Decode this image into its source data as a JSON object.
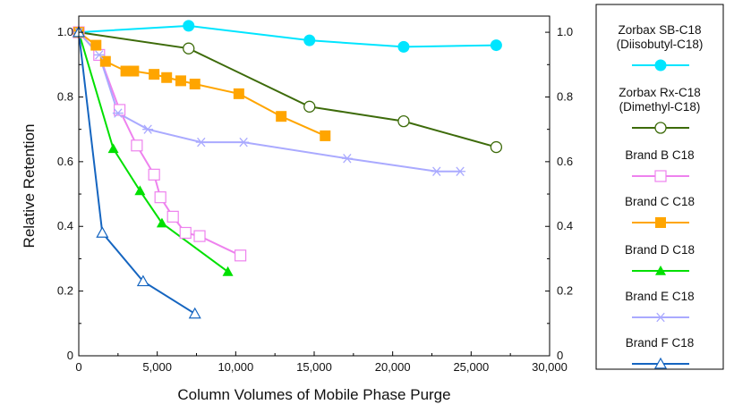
{
  "chart_data": {
    "type": "line",
    "title": "",
    "xlabel": "Column Volumes of Mobile Phase Purge",
    "ylabel": "Relative Retention",
    "xlim": [
      0,
      30000
    ],
    "ylim": [
      0,
      1.05
    ],
    "x_ticks": [
      0,
      5000,
      10000,
      15000,
      20000,
      25000,
      30000
    ],
    "x_tick_labels": [
      "0",
      "5,000",
      "10,000",
      "15,000",
      "20,000",
      "25,000",
      "30,000"
    ],
    "y_ticks": [
      0,
      0.2,
      0.4,
      0.6,
      0.8,
      1.0
    ],
    "y_tick_labels_left": [
      "0",
      "0.2",
      "0.4",
      "0.6",
      "0.8",
      "1.0"
    ],
    "y_tick_labels_right": [
      "0",
      "0.2",
      "0.4",
      "0.6",
      "0.8",
      "1.0"
    ],
    "grid": false,
    "legend_position": "right",
    "series": [
      {
        "name": "Zorbax SB-C18 (Diisobutyl-C18)",
        "legend_lines": [
          "Zorbax SB-C18",
          "(Diisobutyl-C18)"
        ],
        "color": "#00e5ff",
        "marker": "circle-filled",
        "points": [
          [
            0,
            1.0
          ],
          [
            7000,
            1.02
          ],
          [
            14700,
            0.975
          ],
          [
            20700,
            0.955
          ],
          [
            26600,
            0.96
          ]
        ]
      },
      {
        "name": "Zorbax Rx-C18 (Dimethyl-C18)",
        "legend_lines": [
          "Zorbax Rx-C18",
          "(Dimethyl-C18)"
        ],
        "color": "#3d6b0a",
        "marker": "circle-open",
        "points": [
          [
            0,
            1.0
          ],
          [
            7000,
            0.95
          ],
          [
            14700,
            0.77
          ],
          [
            20700,
            0.725
          ],
          [
            26600,
            0.645
          ]
        ]
      },
      {
        "name": "Brand B C18",
        "legend_lines": [
          "Brand B C18"
        ],
        "color": "#ee82ee",
        "marker": "square-open",
        "points": [
          [
            0,
            1.0
          ],
          [
            1300,
            0.93
          ],
          [
            2600,
            0.76
          ],
          [
            3700,
            0.65
          ],
          [
            4800,
            0.56
          ],
          [
            5200,
            0.49
          ],
          [
            6000,
            0.43
          ],
          [
            6800,
            0.38
          ],
          [
            7700,
            0.37
          ],
          [
            10300,
            0.31
          ]
        ]
      },
      {
        "name": "Brand C C18",
        "legend_lines": [
          "Brand C C18"
        ],
        "color": "#ffa500",
        "marker": "square-filled",
        "points": [
          [
            0,
            1.0
          ],
          [
            1100,
            0.96
          ],
          [
            1700,
            0.91
          ],
          [
            3000,
            0.88
          ],
          [
            3500,
            0.88
          ],
          [
            4800,
            0.87
          ],
          [
            5600,
            0.86
          ],
          [
            6500,
            0.85
          ],
          [
            7400,
            0.84
          ],
          [
            10200,
            0.81
          ],
          [
            12900,
            0.74
          ],
          [
            15700,
            0.68
          ]
        ]
      },
      {
        "name": "Brand D C18",
        "legend_lines": [
          "Brand D C18"
        ],
        "color": "#00e000",
        "marker": "triangle-filled",
        "points": [
          [
            0,
            1.0
          ],
          [
            2200,
            0.64
          ],
          [
            3900,
            0.51
          ],
          [
            5300,
            0.41
          ],
          [
            9500,
            0.26
          ]
        ]
      },
      {
        "name": "Brand E C18",
        "legend_lines": [
          "Brand E C18"
        ],
        "color": "#aaaaff",
        "marker": "asterisk",
        "points": [
          [
            0,
            1.0
          ],
          [
            1300,
            0.93
          ],
          [
            2500,
            0.75
          ],
          [
            4400,
            0.7
          ],
          [
            7800,
            0.66
          ],
          [
            10500,
            0.66
          ],
          [
            17100,
            0.61
          ],
          [
            22800,
            0.57
          ],
          [
            24300,
            0.57
          ]
        ]
      },
      {
        "name": "Brand F C18",
        "legend_lines": [
          "Brand F C18"
        ],
        "color": "#1565c0",
        "marker": "triangle-open",
        "points": [
          [
            0,
            1.0
          ],
          [
            1500,
            0.38
          ],
          [
            4100,
            0.23
          ],
          [
            7400,
            0.13
          ]
        ]
      }
    ]
  }
}
